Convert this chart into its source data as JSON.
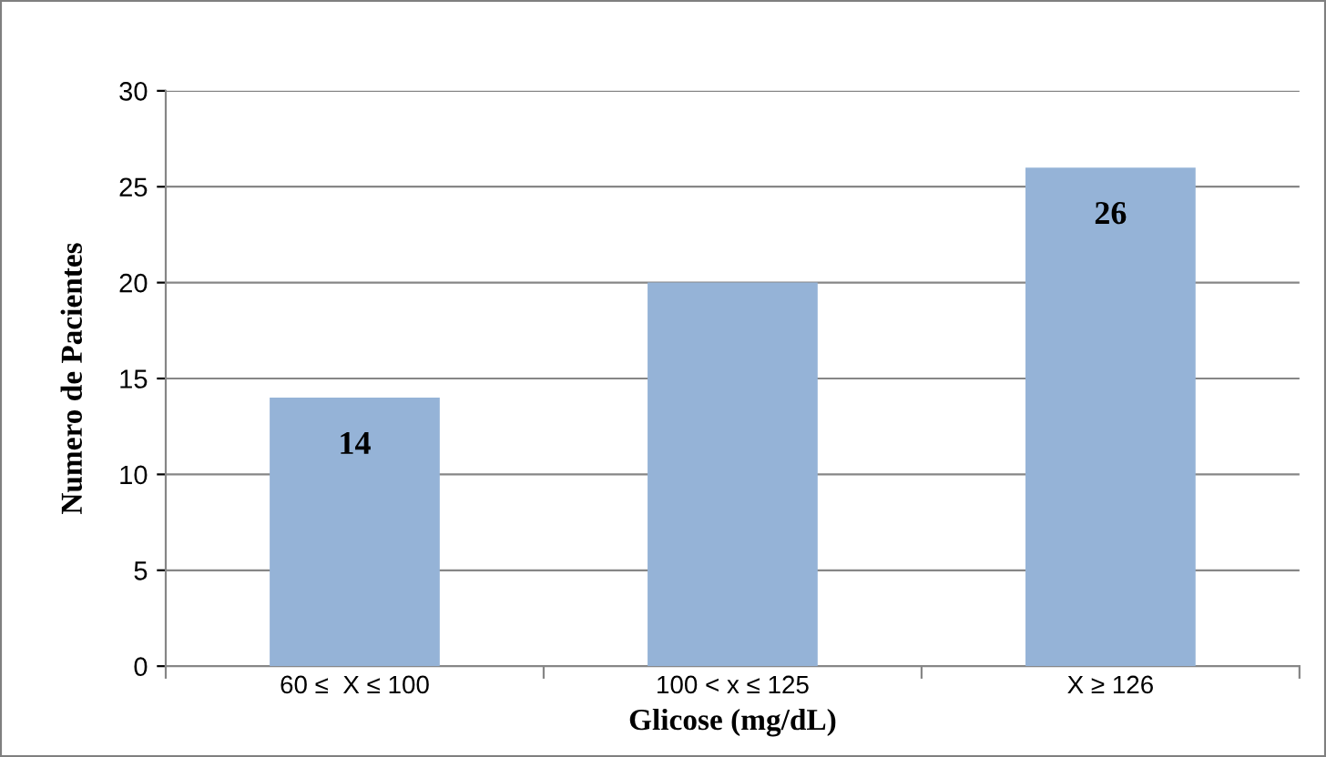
{
  "chart_data": {
    "type": "bar",
    "xlabel": "Glicose (mg/dL)",
    "ylabel": "Numero de Pacientes",
    "categories": [
      "60 ≤  X ≤ 100",
      "100 < x ≤ 125",
      "X ≥ 126"
    ],
    "values": [
      14,
      20,
      26
    ],
    "color": "#95b3d7",
    "value_labels": [
      "14",
      null,
      "26"
    ],
    "ylim": [
      0,
      30
    ],
    "yticks": [
      0,
      5,
      10,
      15,
      20,
      25,
      30
    ],
    "grid": "y"
  }
}
